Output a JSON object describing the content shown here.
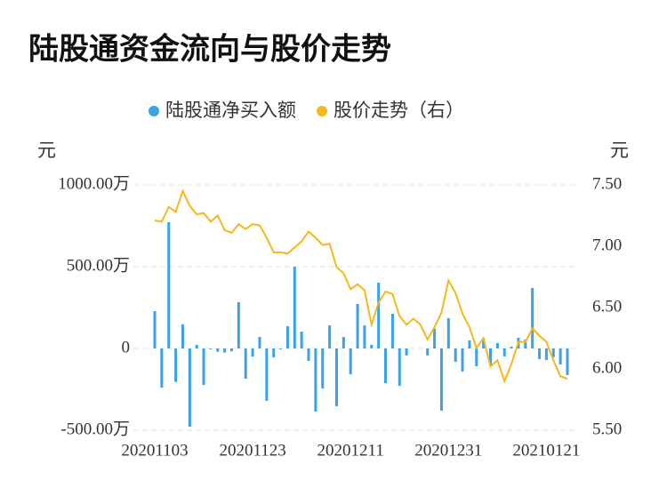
{
  "chart_data": {
    "type": "bar_line",
    "title": "陆股通资金流向与股价走势",
    "y_label": "元",
    "y2_label": "元",
    "categories": [
      "20201103",
      null,
      null,
      null,
      null,
      null,
      null,
      null,
      null,
      null,
      null,
      null,
      null,
      null,
      "20201123",
      null,
      null,
      null,
      null,
      null,
      null,
      null,
      null,
      null,
      null,
      null,
      null,
      null,
      "20201211",
      null,
      null,
      null,
      null,
      null,
      null,
      null,
      null,
      null,
      null,
      null,
      null,
      null,
      "20201231",
      null,
      null,
      null,
      null,
      null,
      null,
      null,
      null,
      null,
      null,
      null,
      null,
      null,
      "20210121",
      null,
      null,
      null
    ],
    "series": [
      {
        "name": "陆股通净买入额",
        "color": "#3ba1e8",
        "type": "bar",
        "axis": "y",
        "values": [
          228,
          -240,
          772,
          -205,
          147,
          -478,
          22,
          -223,
          -5,
          -20,
          -25,
          -18,
          283,
          -185,
          -50,
          70,
          -320,
          -55,
          -5,
          136,
          500,
          103,
          -76,
          -386,
          -245,
          141,
          -353,
          70,
          -158,
          272,
          141,
          22,
          402,
          -212,
          212,
          -228,
          -43,
          0,
          0,
          -43,
          120,
          -380,
          185,
          -82,
          -141,
          49,
          -109,
          65,
          -98,
          33,
          -49,
          11,
          65,
          54,
          370,
          -65,
          -71,
          -54,
          -98,
          -163
        ]
      },
      {
        "name": "股价走势（右）",
        "color": "#f5b81c",
        "type": "line",
        "axis": "y2",
        "values": [
          7.21,
          7.2,
          7.32,
          7.28,
          7.45,
          7.33,
          7.26,
          7.27,
          7.2,
          7.25,
          7.13,
          7.11,
          7.18,
          7.14,
          7.18,
          7.17,
          7.07,
          6.95,
          6.95,
          6.94,
          6.99,
          7.04,
          7.12,
          7.07,
          7.01,
          7.02,
          6.83,
          6.78,
          6.65,
          6.69,
          6.64,
          6.36,
          6.54,
          6.63,
          6.61,
          6.43,
          6.36,
          6.41,
          6.36,
          6.24,
          6.34,
          6.46,
          6.72,
          6.62,
          6.45,
          6.34,
          6.17,
          6.25,
          6.02,
          6.07,
          5.9,
          6.04,
          6.22,
          6.22,
          6.33,
          6.27,
          6.22,
          6.07,
          5.94,
          5.92
        ]
      }
    ],
    "ylim": [
      -500,
      1000
    ],
    "yticks": [
      {
        "value": -500,
        "label": "-500.00万"
      },
      0,
      {
        "value": 500,
        "label": "500.00万"
      },
      {
        "value": 1000,
        "label": "1000.00万"
      }
    ],
    "y2lim": [
      5.5,
      7.5
    ],
    "y2ticks": [
      {
        "value": 5.5,
        "label": "5.50"
      },
      {
        "value": 6,
        "label": "6.00"
      },
      {
        "value": 6.5,
        "label": "6.50"
      },
      {
        "value": 7,
        "label": "7.00"
      },
      {
        "value": 7.5,
        "label": "7.50"
      }
    ],
    "grid": true,
    "legend": "top"
  }
}
